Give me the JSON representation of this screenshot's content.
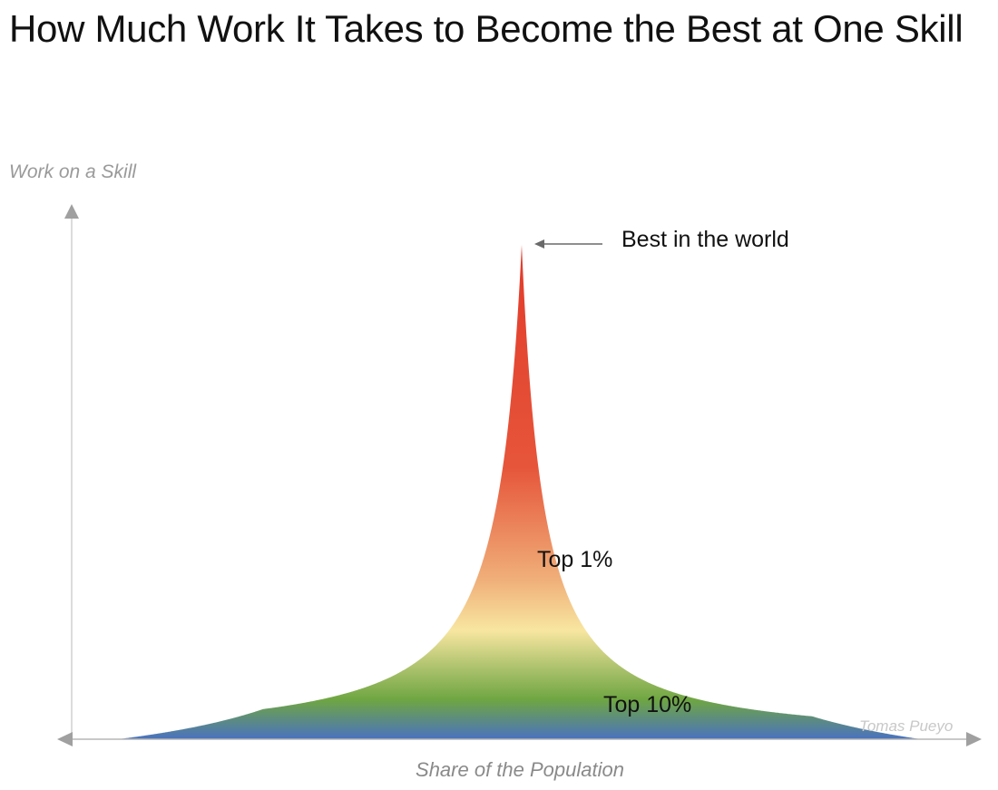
{
  "title": "How Much Work It Takes to Become the Best at One Skill",
  "axes": {
    "y_label": "Work on a Skill",
    "x_label": "Share of the Population"
  },
  "annotations": {
    "best": "Best in the world",
    "top1": "Top 1%",
    "top10": "Top 10%"
  },
  "credit": "Tomas Pueyo",
  "colors": {
    "axis": "#b5b5b5",
    "arrowhead": "#9e9e9e",
    "gradient": [
      "#e23b2a",
      "#e6553a",
      "#f4c08a",
      "#f8e6a0",
      "#8fb35a",
      "#6fa642",
      "#4a72c0"
    ]
  }
}
